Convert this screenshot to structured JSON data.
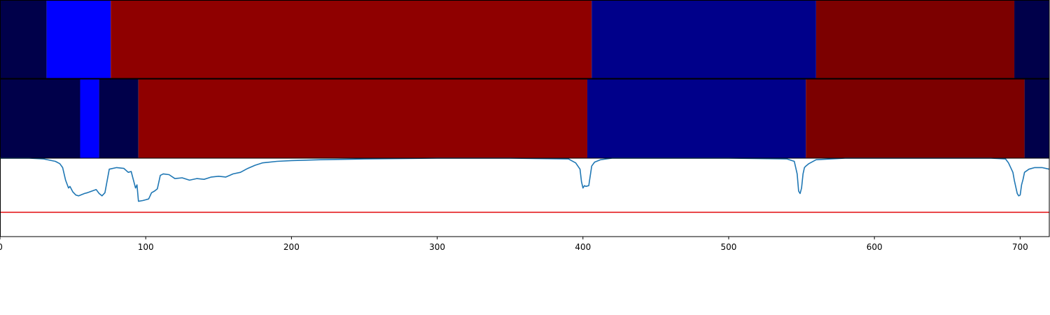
{
  "chart_data": [
    {
      "type": "heatmap",
      "panel": "segments-row-1",
      "xlim": [
        0,
        720
      ],
      "segments": [
        {
          "start": 0,
          "end": 32,
          "color": "#00004a"
        },
        {
          "start": 32,
          "end": 76,
          "color": "#0000ff"
        },
        {
          "start": 76,
          "end": 406,
          "color": "#8f0000"
        },
        {
          "start": 406,
          "end": 560,
          "color": "#00008a"
        },
        {
          "start": 560,
          "end": 696,
          "color": "#7c0000"
        },
        {
          "start": 696,
          "end": 720,
          "color": "#00004a"
        }
      ]
    },
    {
      "type": "heatmap",
      "panel": "segments-row-2",
      "xlim": [
        0,
        720
      ],
      "segments": [
        {
          "start": 0,
          "end": 55,
          "color": "#00004a"
        },
        {
          "start": 55,
          "end": 68,
          "color": "#0000ff"
        },
        {
          "start": 68,
          "end": 95,
          "color": "#00004a"
        },
        {
          "start": 95,
          "end": 403,
          "color": "#8f0000"
        },
        {
          "start": 403,
          "end": 553,
          "color": "#00008a"
        },
        {
          "start": 553,
          "end": 703,
          "color": "#7c0000"
        },
        {
          "start": 703,
          "end": 720,
          "color": "#00004a"
        }
      ]
    },
    {
      "type": "line",
      "panel": "signal",
      "xlim": [
        0,
        720
      ],
      "ylim": [
        0,
        1
      ],
      "xticks": [
        0,
        100,
        200,
        300,
        400,
        500,
        600,
        700
      ],
      "threshold": {
        "value": 0.31,
        "color": "#e41a1c"
      },
      "series_color": "#1f77b4",
      "series": [
        {
          "x": [
            0,
            20,
            30,
            38,
            41,
            43,
            45,
            47,
            48,
            50,
            52,
            54,
            58,
            60,
            63,
            66,
            68,
            70,
            72,
            75,
            80,
            85,
            88,
            90,
            93,
            94,
            95,
            98,
            100,
            102,
            104,
            106,
            108,
            110,
            112,
            116,
            120,
            125,
            130,
            135,
            140,
            145,
            150,
            155,
            160,
            165,
            170,
            175,
            180,
            190,
            200,
            220,
            250,
            300,
            350,
            390,
            395,
            398,
            399,
            400,
            401,
            402,
            404,
            406,
            408,
            412,
            420,
            450,
            500,
            540,
            545,
            547,
            548,
            549,
            550,
            551,
            552,
            553,
            555,
            560,
            580,
            620,
            680,
            690,
            692,
            694,
            695,
            696,
            698,
            699,
            700,
            701,
            702,
            703,
            706,
            710,
            715,
            720
          ],
          "y": [
            1.0,
            1.0,
            0.99,
            0.96,
            0.93,
            0.88,
            0.72,
            0.62,
            0.64,
            0.57,
            0.53,
            0.52,
            0.55,
            0.56,
            0.58,
            0.6,
            0.55,
            0.52,
            0.56,
            0.86,
            0.88,
            0.87,
            0.82,
            0.83,
            0.62,
            0.66,
            0.45,
            0.46,
            0.47,
            0.48,
            0.56,
            0.58,
            0.61,
            0.78,
            0.8,
            0.79,
            0.74,
            0.75,
            0.72,
            0.74,
            0.73,
            0.76,
            0.77,
            0.76,
            0.8,
            0.82,
            0.87,
            0.91,
            0.94,
            0.96,
            0.97,
            0.98,
            0.99,
            1.0,
            1.0,
            0.99,
            0.94,
            0.86,
            0.7,
            0.62,
            0.65,
            0.64,
            0.65,
            0.9,
            0.95,
            0.98,
            1.0,
            1.0,
            1.0,
            0.99,
            0.96,
            0.8,
            0.58,
            0.55,
            0.62,
            0.8,
            0.88,
            0.9,
            0.93,
            0.98,
            1.0,
            1.0,
            1.0,
            0.99,
            0.94,
            0.86,
            0.82,
            0.72,
            0.55,
            0.52,
            0.53,
            0.66,
            0.73,
            0.82,
            0.86,
            0.88,
            0.88,
            0.86
          ]
        }
      ]
    }
  ]
}
